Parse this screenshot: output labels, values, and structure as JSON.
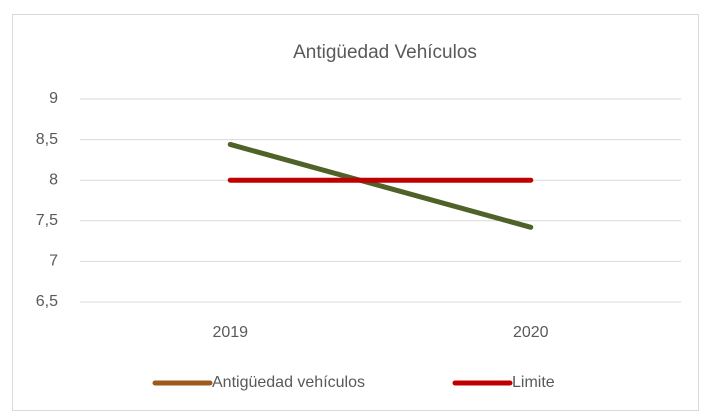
{
  "chart_data": {
    "type": "line",
    "title": "Antigüedad Vehículos",
    "categories": [
      "2019",
      "2020"
    ],
    "series": [
      {
        "name": "Antigüedad vehículos",
        "color": "#4f6228",
        "legend_color": "#9c5a1c",
        "values": [
          8.44,
          7.42
        ]
      },
      {
        "name": "Limite",
        "color": "#c00000",
        "legend_color": "#c00000",
        "values": [
          8,
          8
        ]
      }
    ],
    "ylim": [
      6.5,
      9
    ],
    "yticks": [
      {
        "value": 6.5,
        "label": "6,5"
      },
      7,
      {
        "value": 7.5,
        "label": "7,5"
      },
      8,
      {
        "value": 8.5,
        "label": "8,5"
      },
      9
    ],
    "grid": true,
    "legend": "bottom"
  }
}
